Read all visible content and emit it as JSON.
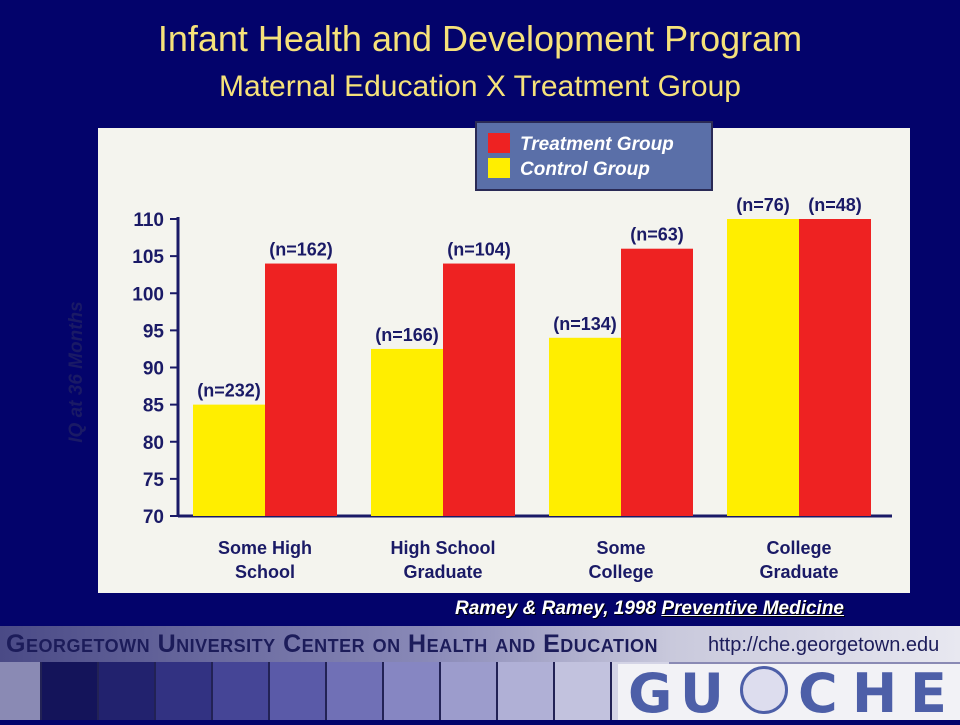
{
  "header": {
    "title": "Infant Health and Development Program",
    "subtitle": "Maternal Education X Treatment Group"
  },
  "chart_data": {
    "type": "bar",
    "categories": [
      [
        "Some High",
        "School"
      ],
      [
        "High School",
        "Graduate"
      ],
      [
        "Some",
        "College"
      ],
      [
        "College",
        "Graduate"
      ]
    ],
    "series": [
      {
        "name": "Control Group",
        "color": "#ffee00",
        "values": [
          85,
          92.5,
          94,
          110
        ],
        "labels": [
          "(n=232)",
          "(n=166)",
          "(n=134)",
          "(n=76)"
        ]
      },
      {
        "name": "Treatment Group",
        "color": "#ee2222",
        "values": [
          104,
          104,
          106,
          110
        ],
        "labels": [
          "(n=162)",
          "(n=104)",
          "(n=63)",
          "(n=48)"
        ]
      }
    ],
    "ylabel": "IQ at 36 Months",
    "ylim": [
      70,
      110
    ],
    "yticks": [
      70,
      75,
      80,
      85,
      90,
      95,
      100,
      105,
      110
    ],
    "legend_position": "top-right",
    "grid": false
  },
  "citation": {
    "authors": "Ramey & Ramey, 1998",
    "journal": "Preventive Medicine"
  },
  "footer": {
    "organization": "Georgetown University Center on Health and Education",
    "url": "http://che.georgetown.edu",
    "logo_letters": [
      "G",
      "U",
      "C",
      "H",
      "E"
    ]
  }
}
